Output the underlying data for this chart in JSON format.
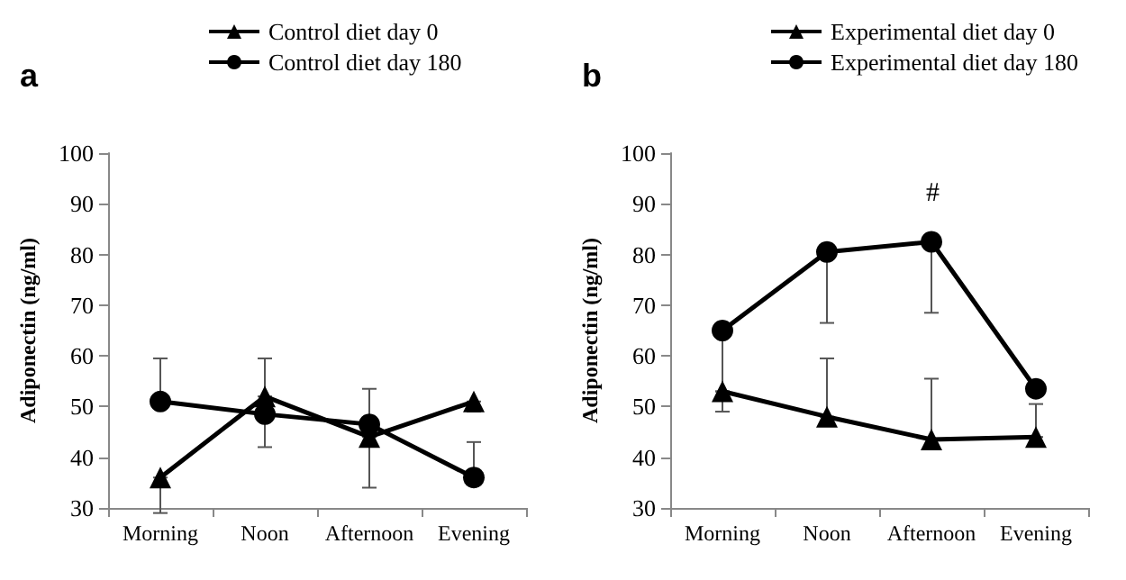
{
  "chart_data": [
    {
      "type": "line",
      "title": "a",
      "ylabel": "Adiponectin (ng/ml)",
      "categories": [
        "Morning",
        "Noon",
        "Afternoon",
        "Evening"
      ],
      "series": [
        {
          "name": "Control diet day 0",
          "color": "#000000",
          "marker": "triangle",
          "values": [
            36,
            52,
            44,
            51
          ],
          "errors": [
            [
              29,
              36
            ],
            [
              52,
              59.5
            ],
            [
              34,
              44
            ],
            [
              49,
              51
            ]
          ]
        },
        {
          "name": "Control diet day 180",
          "color": "#000000",
          "marker": "circle",
          "values": [
            51,
            48.5,
            46.5,
            36
          ],
          "errors": [
            [
              51,
              59.5
            ],
            [
              42,
              48.5
            ],
            [
              46.5,
              53.5
            ],
            [
              36,
              43
            ]
          ]
        }
      ],
      "ylim": [
        30,
        100
      ],
      "yticks": [
        30,
        40,
        50,
        60,
        70,
        80,
        90,
        100
      ],
      "grid": false,
      "legend": "top"
    },
    {
      "type": "line",
      "title": "b",
      "ylabel": "Adiponectin (ng/ml)",
      "categories": [
        "Morning",
        "Noon",
        "Afternoon",
        "Evening"
      ],
      "series": [
        {
          "name": "Experimental diet day 0",
          "color": "#000000",
          "marker": "triangle",
          "values": [
            53,
            48,
            43.5,
            44
          ],
          "errors": [
            [
              49,
              53
            ],
            [
              48,
              59.5
            ],
            [
              43.5,
              55.5
            ],
            [
              44,
              50.5
            ]
          ]
        },
        {
          "name": "Experimental diet day 180",
          "color": "#000000",
          "marker": "circle",
          "values": [
            65,
            80.5,
            82.5,
            53.5
          ],
          "errors": [
            [
              53,
              65
            ],
            [
              66.5,
              80.5
            ],
            [
              68.5,
              82.5
            ],
            null
          ]
        }
      ],
      "annotations": [
        "#"
      ],
      "ylim": [
        30,
        100
      ],
      "yticks": [
        30,
        40,
        50,
        60,
        70,
        80,
        90,
        100
      ],
      "grid": false,
      "legend": "top"
    }
  ]
}
